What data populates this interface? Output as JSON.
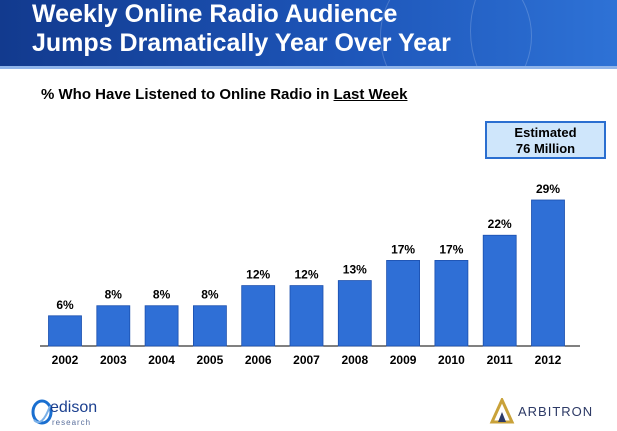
{
  "header": {
    "title_line1": "Weekly Online Radio Audience",
    "title_line2": "Jumps Dramatically Year Over Year"
  },
  "subtitle": {
    "prefix": "% Who Have Listened to Online Radio in ",
    "emphasis": "Last Week"
  },
  "callout": {
    "line1": "Estimated",
    "line2": "76 Million"
  },
  "logos": {
    "edison_name": "edison",
    "edison_sub": "research",
    "arbitron_name": "ARBITRON"
  },
  "colors": {
    "banner": "#1d55b8",
    "bar": "#2f6fd6",
    "callout_fill": "#cfe6fb",
    "callout_border": "#2b6fd0"
  },
  "chart_data": {
    "type": "bar",
    "title": "% Who Have Listened to Online Radio in Last Week",
    "categories": [
      "2002",
      "2003",
      "2004",
      "2005",
      "2006",
      "2007",
      "2008",
      "2009",
      "2010",
      "2011",
      "2012"
    ],
    "values": [
      6,
      8,
      8,
      8,
      12,
      12,
      13,
      17,
      17,
      22,
      29
    ],
    "value_labels": [
      "6%",
      "8%",
      "8%",
      "8%",
      "12%",
      "12%",
      "13%",
      "17%",
      "17%",
      "22%",
      "29%"
    ],
    "ylim": [
      0,
      29
    ],
    "grid": false,
    "legend": "none"
  }
}
